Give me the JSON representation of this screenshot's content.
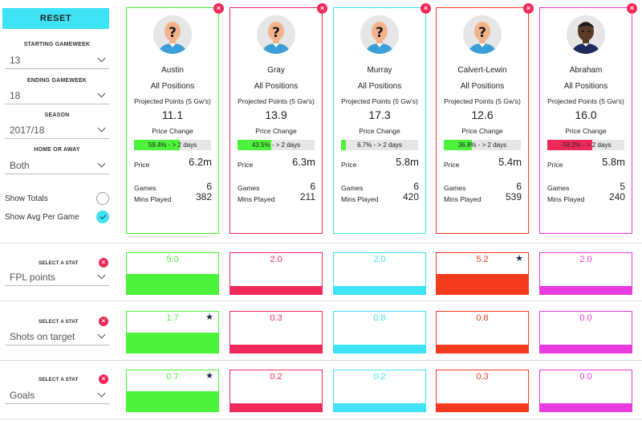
{
  "sidebar": {
    "reset_label": "RESET",
    "starting_gameweek": {
      "label": "STARTING GAMEWEEK",
      "value": "13"
    },
    "ending_gameweek": {
      "label": "ENDING GAMEWEEK",
      "value": "18"
    },
    "season": {
      "label": "SEASON",
      "value": "2017/18"
    },
    "home_or_away": {
      "label": "HOME OR AWAY",
      "value": "Both"
    },
    "show_totals": {
      "label": "Show Totals",
      "checked": false
    },
    "show_avg": {
      "label": "Show Avg Per Game",
      "checked": true
    }
  },
  "labels": {
    "projected": "Projected Points (5 Gw's)",
    "price_change": "Price Change",
    "price": "Price",
    "games": "Games",
    "mins": "Mins Played",
    "select_stat": "SELECT A STAT"
  },
  "players": [
    {
      "name": "Austin",
      "position": "All Positions",
      "projected": "11.1",
      "price_change_text": "59.4% - > 2 days",
      "price_change_pct": 59.4,
      "price": "6.2m",
      "games": "6",
      "mins": "382",
      "color": "#4cf33a",
      "avatar": "unknown-player-icon"
    },
    {
      "name": "Gray",
      "position": "All Positions",
      "projected": "13.9",
      "price_change_text": "43.5% - > 2 days",
      "price_change_pct": 43.5,
      "price": "6.3m",
      "games": "6",
      "mins": "211",
      "color": "#ef2a5a",
      "avatar": "unknown-player-icon"
    },
    {
      "name": "Murray",
      "position": "All Positions",
      "projected": "17.3",
      "price_change_text": "6.7% - > 2 days",
      "price_change_pct": 6.7,
      "price": "5.8m",
      "games": "6",
      "mins": "420",
      "color": "#3fe3f6",
      "avatar": "unknown-player-icon"
    },
    {
      "name": "Calvert-Lewin",
      "position": "All Positions",
      "projected": "12.6",
      "price_change_text": "36.8% - > 2 days",
      "price_change_pct": 36.8,
      "price": "5.4m",
      "games": "6",
      "mins": "539",
      "color": "#f53b1e",
      "avatar": "unknown-player-icon"
    },
    {
      "name": "Abraham",
      "position": "All Positions",
      "projected": "16.0",
      "price_change_text": "-58.2% - > 2 days",
      "price_change_pct": -58.2,
      "price": "5.8m",
      "games": "5",
      "mins": "240",
      "color": "#e83be0",
      "avatar": "player-photo-icon"
    }
  ],
  "stats": [
    {
      "name": "FPL points",
      "values": [
        "5.0",
        "2.0",
        "2.0",
        "5.2",
        "2.0"
      ],
      "fill": [
        0.5,
        0.2,
        0.2,
        0.5,
        0.2
      ],
      "best_index": 3
    },
    {
      "name": "Shots on target",
      "values": [
        "1.7",
        "0.3",
        "0.8",
        "0.8",
        "0.0"
      ],
      "fill": [
        0.5,
        0.2,
        0.2,
        0.2,
        0.2
      ],
      "best_index": 0
    },
    {
      "name": "Goals",
      "values": [
        "0.7",
        "0.2",
        "0.2",
        "0.3",
        "0.0"
      ],
      "fill": [
        0.5,
        0.2,
        0.2,
        0.2,
        0.2
      ],
      "best_index": 0
    }
  ]
}
